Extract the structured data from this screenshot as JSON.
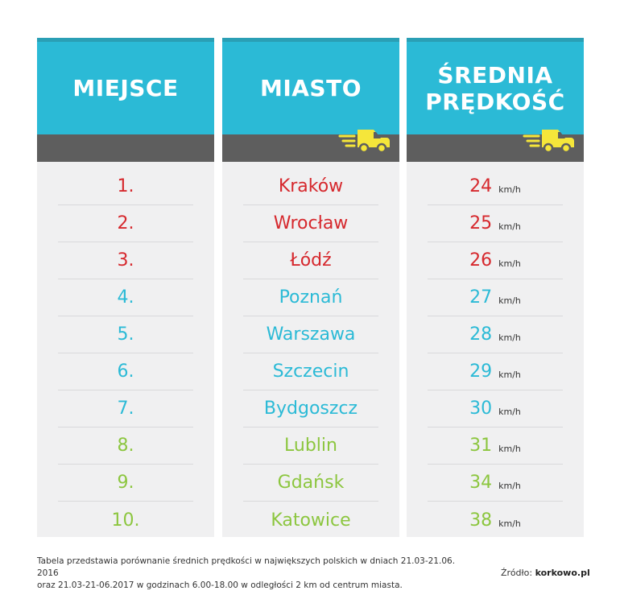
{
  "headers": {
    "place": "MIEJSCE",
    "city": "MIASTO",
    "speed_line1": "ŚREDNIA",
    "speed_line2": "PRĘDKOŚĆ"
  },
  "unit": "km/h",
  "colors": {
    "red": "#d6282d",
    "blue": "#2bbad6",
    "green": "#8cc63f"
  },
  "rows": [
    {
      "place": "1.",
      "city": "Kraków",
      "speed": "24",
      "color": "#d6282d"
    },
    {
      "place": "2.",
      "city": "Wrocław",
      "speed": "25",
      "color": "#d6282d"
    },
    {
      "place": "3.",
      "city": "Łódź",
      "speed": "26",
      "color": "#d6282d"
    },
    {
      "place": "4.",
      "city": "Poznań",
      "speed": "27",
      "color": "#2bbad6"
    },
    {
      "place": "5.",
      "city": "Warszawa",
      "speed": "28",
      "color": "#2bbad6"
    },
    {
      "place": "6.",
      "city": "Szczecin",
      "speed": "29",
      "color": "#2bbad6"
    },
    {
      "place": "7.",
      "city": "Bydgoszcz",
      "speed": "30",
      "color": "#2bbad6"
    },
    {
      "place": "8.",
      "city": "Lublin",
      "speed": "31",
      "color": "#8cc63f"
    },
    {
      "place": "9.",
      "city": "Gdańsk",
      "speed": "34",
      "color": "#8cc63f"
    },
    {
      "place": "10.",
      "city": "Katowice",
      "speed": "38",
      "color": "#8cc63f"
    }
  ],
  "footnote": {
    "line1": "Tabela przedstawia porównanie średnich prędkości w największych polskich w dniach 21.03-21.06. 2016",
    "line2": "oraz 21.03-21-06.2017 w godzinach 6.00-18.00 w odległości 2 km od centrum miasta."
  },
  "source": {
    "label": "Źródło:",
    "name": "korkowo.pl"
  },
  "icons": [
    "truck-icon"
  ]
}
